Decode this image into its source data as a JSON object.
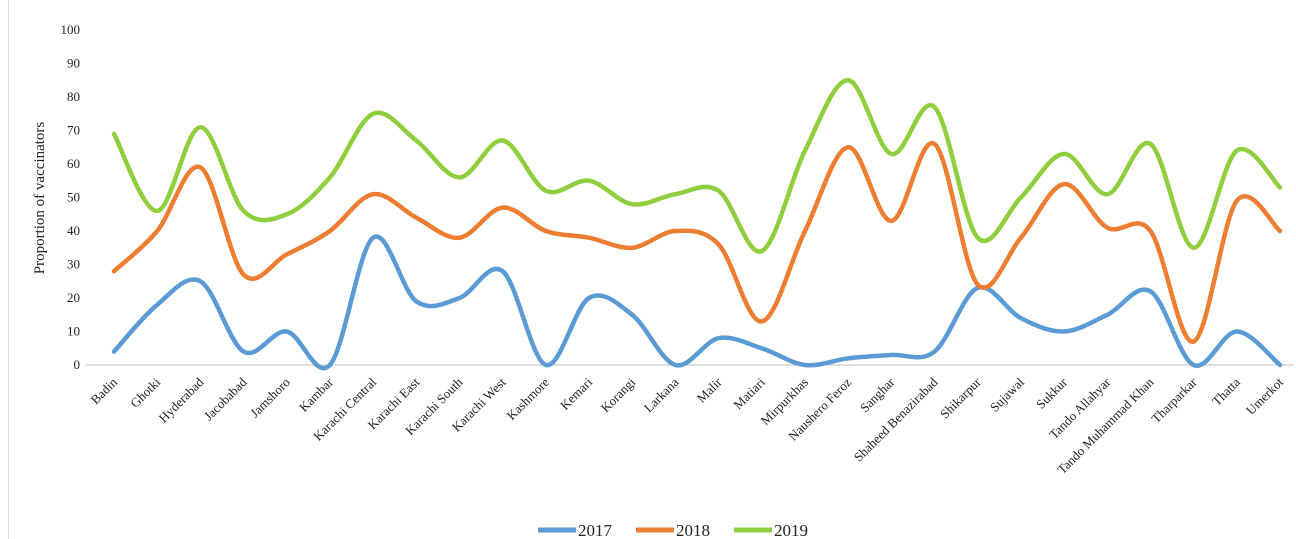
{
  "chart_data": {
    "type": "line",
    "title": "",
    "xlabel": "",
    "ylabel": "Proportion of vaccinators",
    "ylim": [
      0,
      100
    ],
    "yticks": [
      0,
      10,
      20,
      30,
      40,
      50,
      60,
      70,
      80,
      90,
      100
    ],
    "grid": false,
    "legend_position": "bottom",
    "categories": [
      "Badin",
      "Ghotki",
      "Hyderabad",
      "Jacobabad",
      "Jamshoro",
      "Kambar",
      "Karachi Central",
      "Karachi East",
      "Karachi South",
      "Karachi West",
      "Kashmore",
      "Kemari",
      "Korangi",
      "Larkana",
      "Malir",
      "Matiari",
      "Mirpurkhas",
      "Naushero Feroz",
      "Sanghar",
      "Shaheed Benazirabad",
      "Shikarpur",
      "Sujawal",
      "Sukkur",
      "Tando Allahyar",
      "Tando Muhammad Khan",
      "Tharparkar",
      "Thatta",
      "Umerkot"
    ],
    "series": [
      {
        "name": "2017",
        "color": "#5b9bd5",
        "values": [
          4,
          18,
          25,
          4,
          10,
          0,
          38,
          19,
          20,
          28,
          0,
          20,
          15,
          0,
          8,
          5,
          0,
          2,
          3,
          4,
          23,
          14,
          10,
          15,
          22,
          0,
          10,
          0
        ]
      },
      {
        "name": "2018",
        "color": "#ed7d31",
        "values": [
          28,
          40,
          59,
          27,
          33,
          40,
          51,
          44,
          38,
          47,
          40,
          38,
          35,
          40,
          36,
          13,
          40,
          65,
          43,
          66,
          24,
          38,
          54,
          41,
          40,
          7,
          49,
          40
        ]
      },
      {
        "name": "2019",
        "color": "#8fce3c",
        "values": [
          69,
          46,
          71,
          46,
          45,
          56,
          75,
          67,
          56,
          67,
          52,
          55,
          48,
          51,
          52,
          34,
          64,
          85,
          63,
          77,
          38,
          50,
          63,
          51,
          66,
          35,
          64,
          53
        ]
      }
    ]
  }
}
